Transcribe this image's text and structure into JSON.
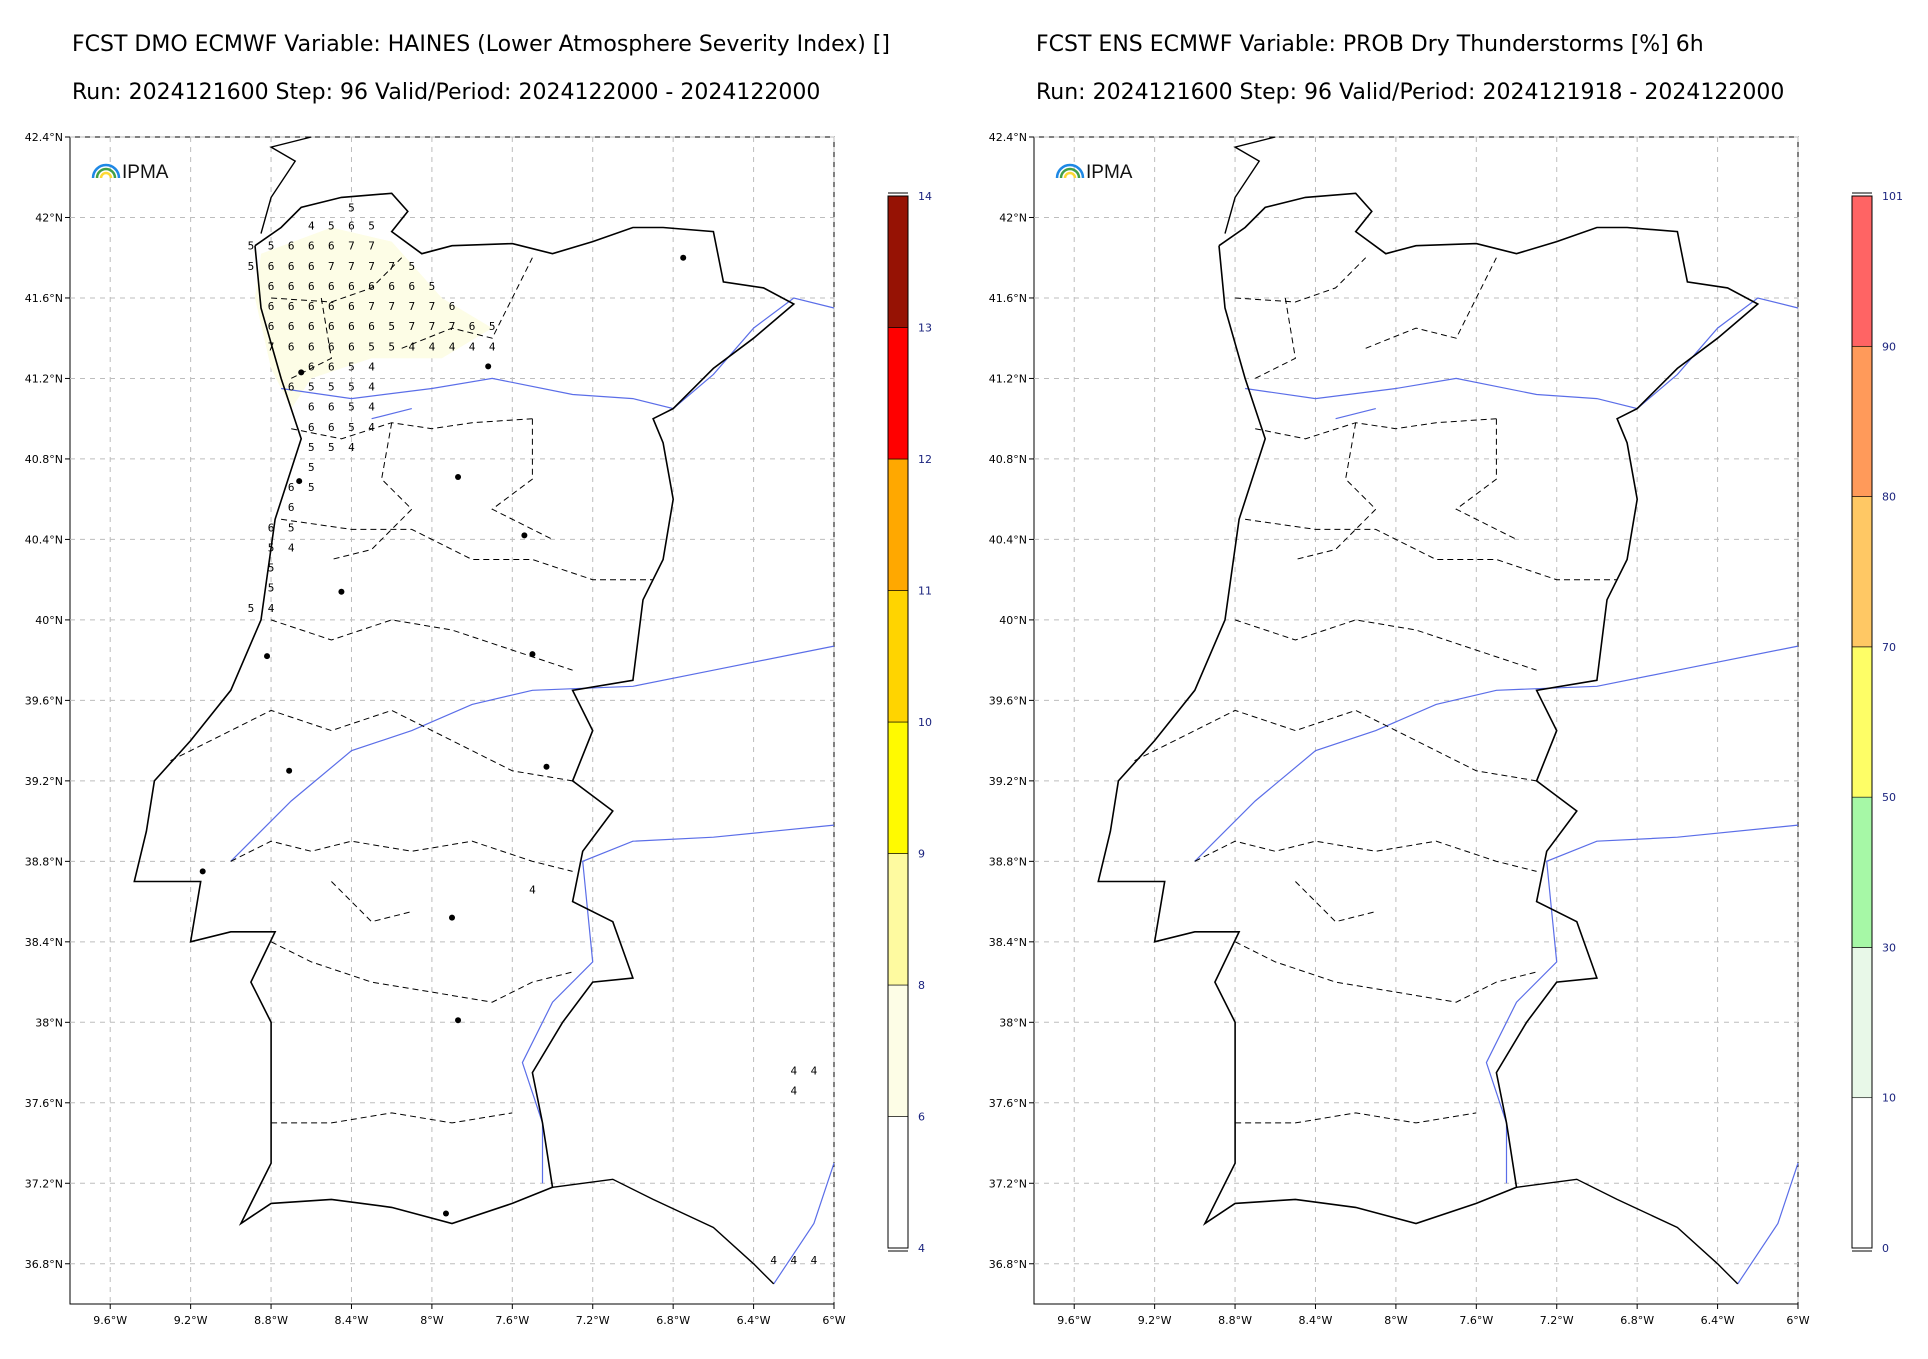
{
  "panels": [
    {
      "title_line1": "FCST DMO ECMWF Variable: HAINES (Lower Atmosphere Severity Index) []",
      "title_line2": "Run: 2024121600 Step: 96 Valid/Period: 2024122000 - 2024122000",
      "logo": "IPMA",
      "colorbar": {
        "ticks": [
          "4",
          "6",
          "8",
          "9",
          "10",
          "11",
          "12",
          "13",
          "14"
        ],
        "colors": [
          "#ffffff",
          "#fdfde6",
          "#fefaa0",
          "#fffa00",
          "#ffd400",
          "#ffa800",
          "#ff0000",
          "#961204"
        ]
      },
      "grid_values": [
        {
          "lon": -8.4,
          "lat": 42.03,
          "v": "5"
        },
        {
          "lon": -8.6,
          "lat": 41.94,
          "v": "4"
        },
        {
          "lon": -8.5,
          "lat": 41.94,
          "v": "5"
        },
        {
          "lon": -8.4,
          "lat": 41.94,
          "v": "6"
        },
        {
          "lon": -8.3,
          "lat": 41.94,
          "v": "5"
        },
        {
          "lon": -8.9,
          "lat": 41.84,
          "v": "5"
        },
        {
          "lon": -8.8,
          "lat": 41.84,
          "v": "5"
        },
        {
          "lon": -8.7,
          "lat": 41.84,
          "v": "6"
        },
        {
          "lon": -8.6,
          "lat": 41.84,
          "v": "6"
        },
        {
          "lon": -8.5,
          "lat": 41.84,
          "v": "6"
        },
        {
          "lon": -8.4,
          "lat": 41.84,
          "v": "7"
        },
        {
          "lon": -8.3,
          "lat": 41.84,
          "v": "7"
        },
        {
          "lon": -8.9,
          "lat": 41.74,
          "v": "5"
        },
        {
          "lon": -8.8,
          "lat": 41.74,
          "v": "6"
        },
        {
          "lon": -8.7,
          "lat": 41.74,
          "v": "6"
        },
        {
          "lon": -8.6,
          "lat": 41.74,
          "v": "6"
        },
        {
          "lon": -8.5,
          "lat": 41.74,
          "v": "7"
        },
        {
          "lon": -8.4,
          "lat": 41.74,
          "v": "7"
        },
        {
          "lon": -8.3,
          "lat": 41.74,
          "v": "7"
        },
        {
          "lon": -8.2,
          "lat": 41.74,
          "v": "7"
        },
        {
          "lon": -8.1,
          "lat": 41.74,
          "v": "5"
        },
        {
          "lon": -8.8,
          "lat": 41.64,
          "v": "6"
        },
        {
          "lon": -8.7,
          "lat": 41.64,
          "v": "6"
        },
        {
          "lon": -8.6,
          "lat": 41.64,
          "v": "6"
        },
        {
          "lon": -8.5,
          "lat": 41.64,
          "v": "6"
        },
        {
          "lon": -8.4,
          "lat": 41.64,
          "v": "6"
        },
        {
          "lon": -8.3,
          "lat": 41.64,
          "v": "6"
        },
        {
          "lon": -8.2,
          "lat": 41.64,
          "v": "6"
        },
        {
          "lon": -8.1,
          "lat": 41.64,
          "v": "6"
        },
        {
          "lon": -8.0,
          "lat": 41.64,
          "v": "5"
        },
        {
          "lon": -8.8,
          "lat": 41.54,
          "v": "6"
        },
        {
          "lon": -8.7,
          "lat": 41.54,
          "v": "6"
        },
        {
          "lon": -8.6,
          "lat": 41.54,
          "v": "6"
        },
        {
          "lon": -8.5,
          "lat": 41.54,
          "v": "6"
        },
        {
          "lon": -8.4,
          "lat": 41.54,
          "v": "6"
        },
        {
          "lon": -8.3,
          "lat": 41.54,
          "v": "7"
        },
        {
          "lon": -8.2,
          "lat": 41.54,
          "v": "7"
        },
        {
          "lon": -8.1,
          "lat": 41.54,
          "v": "7"
        },
        {
          "lon": -8.0,
          "lat": 41.54,
          "v": "7"
        },
        {
          "lon": -7.9,
          "lat": 41.54,
          "v": "6"
        },
        {
          "lon": -8.8,
          "lat": 41.44,
          "v": "6"
        },
        {
          "lon": -8.7,
          "lat": 41.44,
          "v": "6"
        },
        {
          "lon": -8.6,
          "lat": 41.44,
          "v": "6"
        },
        {
          "lon": -8.5,
          "lat": 41.44,
          "v": "6"
        },
        {
          "lon": -8.4,
          "lat": 41.44,
          "v": "6"
        },
        {
          "lon": -8.3,
          "lat": 41.44,
          "v": "6"
        },
        {
          "lon": -8.2,
          "lat": 41.44,
          "v": "5"
        },
        {
          "lon": -8.1,
          "lat": 41.44,
          "v": "7"
        },
        {
          "lon": -8.0,
          "lat": 41.44,
          "v": "7"
        },
        {
          "lon": -7.9,
          "lat": 41.44,
          "v": "7"
        },
        {
          "lon": -7.8,
          "lat": 41.44,
          "v": "6"
        },
        {
          "lon": -7.7,
          "lat": 41.44,
          "v": "5"
        },
        {
          "lon": -8.8,
          "lat": 41.34,
          "v": "7"
        },
        {
          "lon": -8.7,
          "lat": 41.34,
          "v": "6"
        },
        {
          "lon": -8.6,
          "lat": 41.34,
          "v": "6"
        },
        {
          "lon": -8.5,
          "lat": 41.34,
          "v": "6"
        },
        {
          "lon": -8.4,
          "lat": 41.34,
          "v": "6"
        },
        {
          "lon": -8.3,
          "lat": 41.34,
          "v": "5"
        },
        {
          "lon": -8.2,
          "lat": 41.34,
          "v": "5"
        },
        {
          "lon": -8.1,
          "lat": 41.34,
          "v": "4"
        },
        {
          "lon": -8.0,
          "lat": 41.34,
          "v": "4"
        },
        {
          "lon": -7.9,
          "lat": 41.34,
          "v": "4"
        },
        {
          "lon": -7.8,
          "lat": 41.34,
          "v": "4"
        },
        {
          "lon": -7.7,
          "lat": 41.34,
          "v": "4"
        },
        {
          "lon": -8.6,
          "lat": 41.24,
          "v": "6"
        },
        {
          "lon": -8.5,
          "lat": 41.24,
          "v": "6"
        },
        {
          "lon": -8.4,
          "lat": 41.24,
          "v": "5"
        },
        {
          "lon": -8.3,
          "lat": 41.24,
          "v": "4"
        },
        {
          "lon": -8.7,
          "lat": 41.14,
          "v": "6"
        },
        {
          "lon": -8.6,
          "lat": 41.14,
          "v": "5"
        },
        {
          "lon": -8.5,
          "lat": 41.14,
          "v": "5"
        },
        {
          "lon": -8.4,
          "lat": 41.14,
          "v": "5"
        },
        {
          "lon": -8.3,
          "lat": 41.14,
          "v": "4"
        },
        {
          "lon": -8.6,
          "lat": 41.04,
          "v": "6"
        },
        {
          "lon": -8.5,
          "lat": 41.04,
          "v": "6"
        },
        {
          "lon": -8.4,
          "lat": 41.04,
          "v": "5"
        },
        {
          "lon": -8.3,
          "lat": 41.04,
          "v": "4"
        },
        {
          "lon": -8.6,
          "lat": 40.94,
          "v": "6"
        },
        {
          "lon": -8.5,
          "lat": 40.94,
          "v": "6"
        },
        {
          "lon": -8.4,
          "lat": 40.94,
          "v": "5"
        },
        {
          "lon": -8.3,
          "lat": 40.94,
          "v": "4"
        },
        {
          "lon": -8.6,
          "lat": 40.84,
          "v": "5"
        },
        {
          "lon": -8.5,
          "lat": 40.84,
          "v": "5"
        },
        {
          "lon": -8.4,
          "lat": 40.84,
          "v": "4"
        },
        {
          "lon": -8.6,
          "lat": 40.74,
          "v": "5"
        },
        {
          "lon": -8.7,
          "lat": 40.64,
          "v": "6"
        },
        {
          "lon": -8.6,
          "lat": 40.64,
          "v": "5"
        },
        {
          "lon": -8.7,
          "lat": 40.54,
          "v": "6"
        },
        {
          "lon": -8.8,
          "lat": 40.44,
          "v": "6"
        },
        {
          "lon": -8.7,
          "lat": 40.44,
          "v": "5"
        },
        {
          "lon": -8.8,
          "lat": 40.34,
          "v": "5"
        },
        {
          "lon": -8.7,
          "lat": 40.34,
          "v": "4"
        },
        {
          "lon": -8.8,
          "lat": 40.24,
          "v": "5"
        },
        {
          "lon": -8.8,
          "lat": 40.14,
          "v": "5"
        },
        {
          "lon": -8.9,
          "lat": 40.04,
          "v": "5"
        },
        {
          "lon": -8.8,
          "lat": 40.04,
          "v": "4"
        },
        {
          "lon": -7.5,
          "lat": 38.64,
          "v": "4"
        },
        {
          "lon": -6.2,
          "lat": 37.74,
          "v": "4"
        },
        {
          "lon": -6.1,
          "lat": 37.74,
          "v": "4"
        },
        {
          "lon": -6.2,
          "lat": 37.64,
          "v": "4"
        },
        {
          "lon": -6.3,
          "lat": 36.8,
          "v": "4"
        },
        {
          "lon": -6.2,
          "lat": 36.8,
          "v": "4"
        },
        {
          "lon": -6.1,
          "lat": 36.8,
          "v": "4"
        }
      ]
    },
    {
      "title_line1": "FCST ENS ECMWF Variable: PROB Dry Thunderstorms [%] 6h",
      "title_line2": "Run: 2024121600 Step: 96 Valid/Period: 2024121918 - 2024122000",
      "logo": "IPMA",
      "colorbar": {
        "ticks": [
          "0",
          "10",
          "30",
          "50",
          "70",
          "80",
          "90",
          "101"
        ],
        "colors": [
          "#ffffff",
          "#e8f8e8",
          "#a6f8a6",
          "#fefe66",
          "#ffc864",
          "#ff9a5a",
          "#ff6464"
        ]
      },
      "grid_values": []
    }
  ],
  "map_axes": {
    "lon_ticks": [
      "9.6°W",
      "9.2°W",
      "8.8°W",
      "8.4°W",
      "8°W",
      "7.6°W",
      "7.2°W",
      "6.8°W",
      "6.4°W",
      "6°W"
    ],
    "lat_ticks": [
      "42.4°N",
      "42°N",
      "41.6°N",
      "41.2°N",
      "40.8°N",
      "40.4°N",
      "40°N",
      "39.6°N",
      "39.2°N",
      "38.8°N",
      "38.4°N",
      "38°N",
      "37.6°N",
      "37.2°N",
      "36.8°N"
    ],
    "lon_range": [
      -9.8,
      -6.0
    ],
    "lat_range": [
      36.6,
      42.4
    ],
    "grid": true
  },
  "cities": [
    {
      "lon": -8.65,
      "lat": 41.23
    },
    {
      "lon": -7.72,
      "lat": 41.26
    },
    {
      "lon": -6.75,
      "lat": 41.8
    },
    {
      "lon": -7.87,
      "lat": 40.71
    },
    {
      "lon": -7.54,
      "lat": 40.42
    },
    {
      "lon": -8.45,
      "lat": 40.14
    },
    {
      "lon": -8.82,
      "lat": 39.82
    },
    {
      "lon": -7.5,
      "lat": 39.83
    },
    {
      "lon": -8.71,
      "lat": 39.25
    },
    {
      "lon": -7.43,
      "lat": 39.27
    },
    {
      "lon": -9.14,
      "lat": 38.75
    },
    {
      "lon": -7.9,
      "lat": 38.52
    },
    {
      "lon": -7.87,
      "lat": 38.01
    },
    {
      "lon": -7.93,
      "lat": 37.05
    },
    {
      "lon": -8.66,
      "lat": 40.69
    }
  ],
  "colors": {
    "border": "#000000",
    "river": "#5b6ee8",
    "district": "#000000",
    "gridline": "#bdbdbd",
    "shade": "#fdfde6"
  }
}
